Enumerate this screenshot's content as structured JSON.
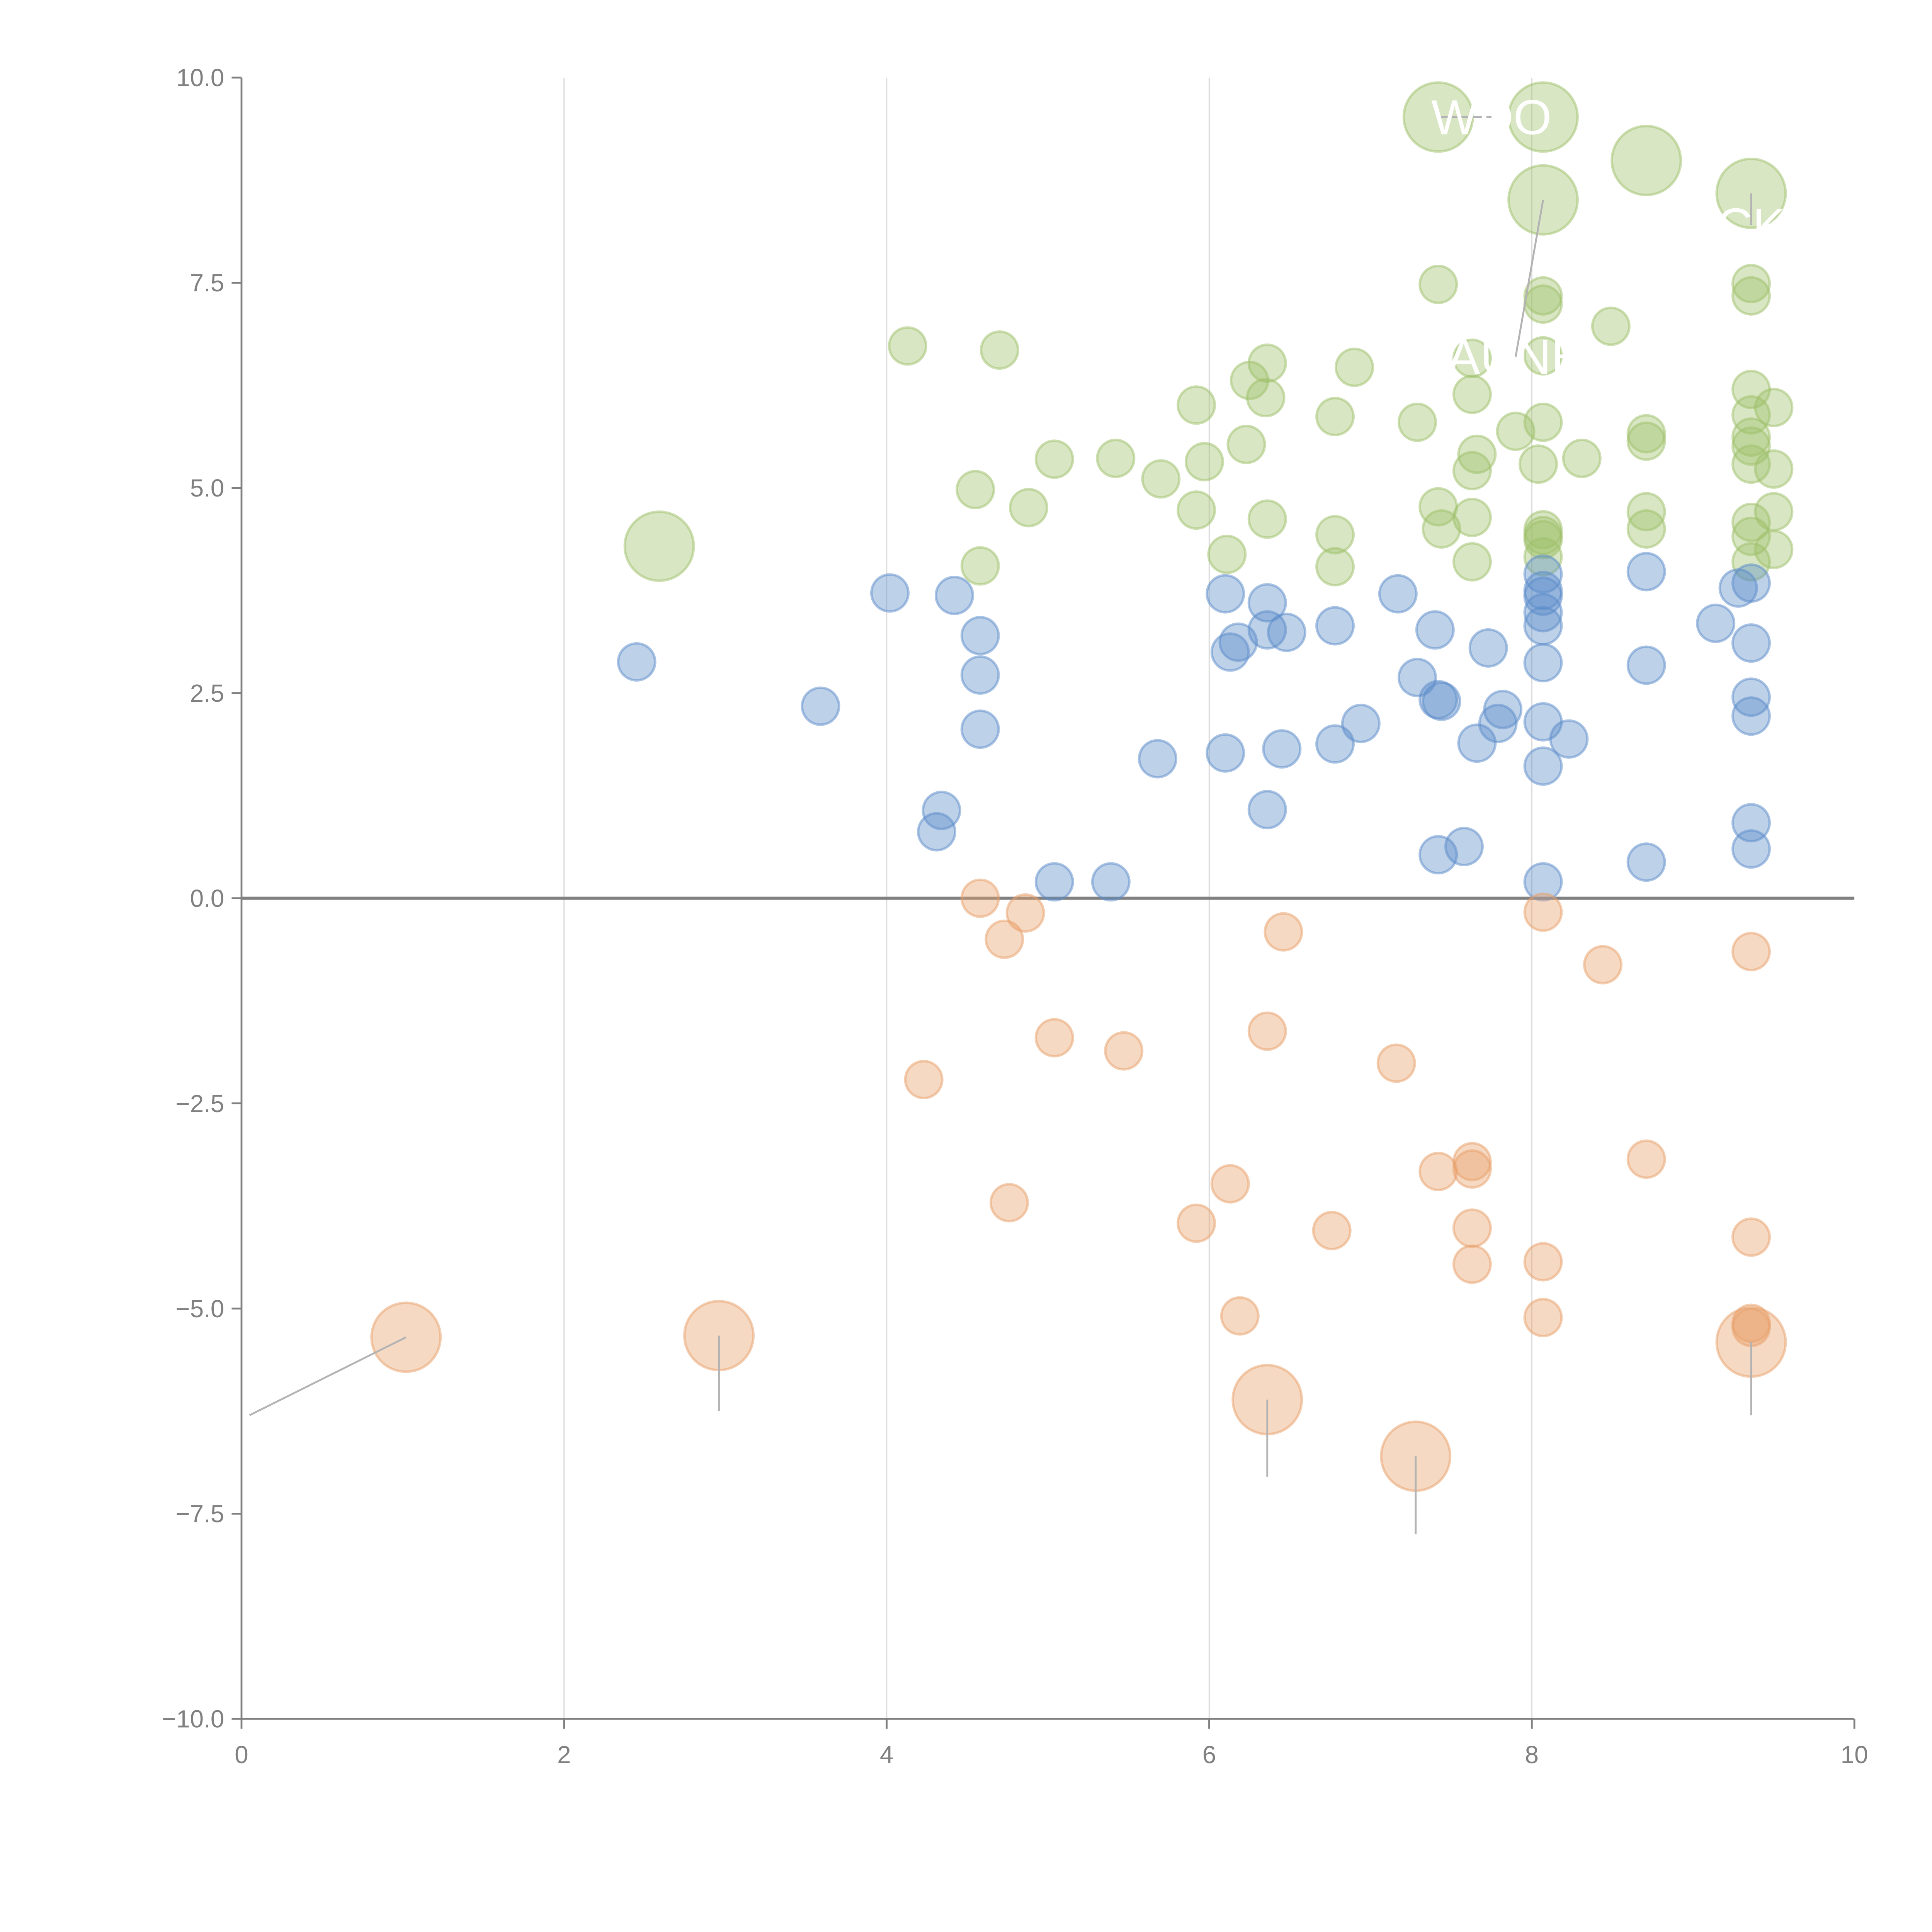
{
  "chart_data": {
    "type": "scatter",
    "subtype": "bubble",
    "title": "",
    "xlabel": "",
    "ylabel": "",
    "xlim": [
      0,
      10
    ],
    "ylim": [
      -10,
      10
    ],
    "x_ticks": [
      "0",
      "2",
      "4",
      "6",
      "8",
      "10"
    ],
    "y_ticks": [
      "10.0",
      "7.5",
      "5.0",
      "2.5",
      "0.0",
      "−2.5",
      "−5.0",
      "−7.5",
      "−10.0"
    ],
    "grid": "vertical",
    "zero_line": true,
    "legend": "none",
    "series": [
      {
        "name": "green",
        "color": "#9dc069",
        "points": [
          [
            4.13,
            6.73,
            1
          ],
          [
            4.7,
            6.68,
            1
          ],
          [
            6.36,
            6.52,
            1
          ],
          [
            6.25,
            6.31,
            1
          ],
          [
            6.35,
            6.1,
            1
          ],
          [
            6.9,
            6.47,
            1
          ],
          [
            5.92,
            6.01,
            1
          ],
          [
            6.78,
            5.87,
            1
          ],
          [
            6.23,
            5.53,
            1
          ],
          [
            5.97,
            5.32,
            1
          ],
          [
            5.04,
            5.35,
            1
          ],
          [
            5.42,
            5.36,
            1
          ],
          [
            5.7,
            5.11,
            1
          ],
          [
            4.55,
            4.98,
            1
          ],
          [
            4.88,
            4.76,
            1
          ],
          [
            5.92,
            4.73,
            1
          ],
          [
            6.36,
            4.62,
            1
          ],
          [
            6.11,
            4.19,
            1
          ],
          [
            4.58,
            4.05,
            1
          ],
          [
            6.78,
            4.43,
            1
          ],
          [
            6.78,
            4.04,
            1
          ],
          [
            7.42,
            7.48,
            1
          ],
          [
            7.29,
            5.8,
            1
          ],
          [
            7.63,
            6.14,
            1
          ],
          [
            7.63,
            6.58,
            1
          ],
          [
            7.66,
            5.41,
            1
          ],
          [
            7.63,
            5.21,
            1
          ],
          [
            7.9,
            5.69,
            1
          ],
          [
            7.42,
            4.77,
            1
          ],
          [
            7.44,
            4.5,
            1
          ],
          [
            7.63,
            4.64,
            1
          ],
          [
            7.63,
            4.1,
            1
          ],
          [
            8.07,
            7.34,
            1
          ],
          [
            8.07,
            7.24,
            1
          ],
          [
            8.07,
            6.61,
            1
          ],
          [
            8.07,
            5.8,
            1
          ],
          [
            8.04,
            5.29,
            1
          ],
          [
            8.07,
            4.49,
            1
          ],
          [
            8.07,
            4.42,
            1
          ],
          [
            8.07,
            4.37,
            1
          ],
          [
            8.07,
            4.16,
            1
          ],
          [
            8.49,
            6.97,
            1
          ],
          [
            8.31,
            5.36,
            1
          ],
          [
            8.71,
            5.66,
            1
          ],
          [
            8.71,
            5.57,
            1
          ],
          [
            8.71,
            4.71,
            1
          ],
          [
            8.71,
            4.5,
            1
          ],
          [
            9.36,
            7.49,
            1
          ],
          [
            9.36,
            7.34,
            1
          ],
          [
            9.36,
            6.2,
            1
          ],
          [
            9.36,
            5.89,
            1
          ],
          [
            9.5,
            5.98,
            1
          ],
          [
            9.36,
            5.62,
            1
          ],
          [
            9.36,
            5.51,
            1
          ],
          [
            9.36,
            5.29,
            1
          ],
          [
            9.5,
            5.23,
            1
          ],
          [
            9.36,
            4.58,
            1
          ],
          [
            9.5,
            4.71,
            1
          ],
          [
            9.36,
            4.41,
            1
          ],
          [
            9.36,
            4.1,
            1
          ],
          [
            9.5,
            4.25,
            1
          ],
          [
            2.59,
            4.29,
            4
          ],
          [
            7.42,
            9.52,
            4
          ],
          [
            8.07,
            9.52,
            4
          ],
          [
            8.07,
            8.51,
            4
          ],
          [
            8.71,
            8.99,
            4
          ],
          [
            9.36,
            8.59,
            4
          ]
        ]
      },
      {
        "name": "blue",
        "color": "#5b8bc9",
        "points": [
          [
            2.45,
            2.88,
            1
          ],
          [
            3.59,
            2.34,
            1
          ],
          [
            4.02,
            3.72,
            1
          ],
          [
            4.42,
            3.69,
            1
          ],
          [
            4.58,
            3.2,
            1
          ],
          [
            4.58,
            2.72,
            1
          ],
          [
            4.58,
            2.06,
            1
          ],
          [
            4.34,
            1.07,
            1
          ],
          [
            4.31,
            0.81,
            1
          ],
          [
            5.04,
            0.2,
            1
          ],
          [
            5.39,
            0.2,
            1
          ],
          [
            5.68,
            1.7,
            1
          ],
          [
            6.1,
            3.71,
            1
          ],
          [
            6.18,
            3.12,
            1
          ],
          [
            6.13,
            3.0,
            1
          ],
          [
            6.36,
            3.6,
            1
          ],
          [
            6.36,
            3.27,
            1
          ],
          [
            6.48,
            3.24,
            1
          ],
          [
            6.1,
            1.77,
            1
          ],
          [
            6.45,
            1.82,
            1
          ],
          [
            6.36,
            1.08,
            1
          ],
          [
            6.78,
            3.32,
            1
          ],
          [
            6.78,
            1.88,
            1
          ],
          [
            6.94,
            2.13,
            1
          ],
          [
            7.17,
            3.71,
            1
          ],
          [
            7.4,
            3.27,
            1
          ],
          [
            7.29,
            2.69,
            1
          ],
          [
            7.42,
            2.42,
            1
          ],
          [
            7.44,
            2.4,
            1
          ],
          [
            7.73,
            3.05,
            1
          ],
          [
            7.82,
            2.3,
            1
          ],
          [
            7.79,
            2.13,
            1
          ],
          [
            7.66,
            1.89,
            1
          ],
          [
            7.42,
            0.53,
            1
          ],
          [
            7.58,
            0.63,
            1
          ],
          [
            8.07,
            3.95,
            1
          ],
          [
            8.07,
            3.75,
            1
          ],
          [
            8.07,
            3.68,
            1
          ],
          [
            8.07,
            3.48,
            1
          ],
          [
            8.07,
            3.32,
            1
          ],
          [
            8.07,
            2.87,
            1
          ],
          [
            8.07,
            2.15,
            1
          ],
          [
            8.23,
            1.94,
            1
          ],
          [
            8.07,
            1.61,
            1
          ],
          [
            8.07,
            0.2,
            1
          ],
          [
            8.71,
            3.98,
            1
          ],
          [
            8.71,
            2.84,
            1
          ],
          [
            8.71,
            0.44,
            1
          ],
          [
            9.14,
            3.35,
            1
          ],
          [
            9.28,
            3.78,
            1
          ],
          [
            9.36,
            3.84,
            1
          ],
          [
            9.36,
            3.11,
            1
          ],
          [
            9.36,
            2.45,
            1
          ],
          [
            9.36,
            2.22,
            1
          ],
          [
            9.36,
            0.92,
            1
          ],
          [
            9.36,
            0.6,
            1
          ]
        ]
      },
      {
        "name": "orange",
        "color": "#e8a06a",
        "points": [
          [
            4.58,
            0.0,
            1
          ],
          [
            4.86,
            -0.18,
            1
          ],
          [
            4.73,
            -0.5,
            1
          ],
          [
            4.23,
            -2.21,
            1
          ],
          [
            5.04,
            -1.7,
            1
          ],
          [
            5.47,
            -1.86,
            1
          ],
          [
            4.76,
            -3.71,
            1
          ],
          [
            6.46,
            -0.41,
            1
          ],
          [
            6.36,
            -1.62,
            1
          ],
          [
            6.13,
            -3.48,
            1
          ],
          [
            5.92,
            -3.96,
            1
          ],
          [
            6.19,
            -5.09,
            1
          ],
          [
            6.76,
            -4.05,
            1
          ],
          [
            7.16,
            -2.01,
            1
          ],
          [
            7.42,
            -3.33,
            1
          ],
          [
            7.63,
            -3.21,
            1
          ],
          [
            7.63,
            -3.3,
            1
          ],
          [
            7.63,
            -4.02,
            1
          ],
          [
            7.63,
            -4.46,
            1
          ],
          [
            8.07,
            -0.17,
            1
          ],
          [
            8.44,
            -0.81,
            1
          ],
          [
            8.07,
            -4.43,
            1
          ],
          [
            8.07,
            -5.11,
            1
          ],
          [
            8.71,
            -3.18,
            1
          ],
          [
            9.36,
            -0.65,
            1
          ],
          [
            9.36,
            -4.13,
            1
          ],
          [
            9.36,
            -5.18,
            1
          ],
          [
            9.36,
            -5.23,
            1
          ],
          [
            1.02,
            -5.35,
            4
          ],
          [
            2.96,
            -5.33,
            4
          ],
          [
            6.36,
            -6.11,
            4
          ],
          [
            7.28,
            -6.8,
            4
          ],
          [
            9.36,
            -5.41,
            4
          ]
        ]
      }
    ],
    "annotations": [
      {
        "text": "WDO",
        "x": 7.75,
        "y": 9.52,
        "leader_to": [
          7.42,
          9.52
        ]
      },
      {
        "text": "CK",
        "x": 9.36,
        "y": 8.2,
        "leader_to": [
          9.36,
          8.59
        ]
      },
      {
        "text": "AUNE",
        "x": 7.9,
        "y": 6.6,
        "leader_to": [
          8.07,
          8.51
        ]
      },
      {
        "text": "",
        "x": 0.05,
        "y": -6.3,
        "leader_to": [
          1.02,
          -5.35
        ]
      },
      {
        "text": "",
        "x": 2.96,
        "y": -6.25,
        "leader_to": [
          2.96,
          -5.33
        ]
      },
      {
        "text": "",
        "x": 6.36,
        "y": -7.05,
        "leader_to": [
          6.36,
          -6.11
        ]
      },
      {
        "text": "",
        "x": 7.28,
        "y": -7.75,
        "leader_to": [
          7.28,
          -6.8
        ]
      },
      {
        "text": "",
        "x": 9.36,
        "y": -6.3,
        "leader_to": [
          9.36,
          -5.41
        ]
      }
    ]
  }
}
